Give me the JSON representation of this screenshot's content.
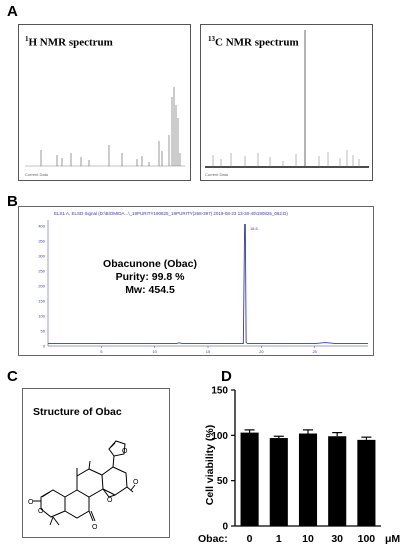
{
  "panels": {
    "a": {
      "label": "A",
      "h_nmr_title": "H NMR spectrum",
      "h_sup": "1",
      "c_nmr_title": "C NMR spectrum",
      "c_sup": "13"
    },
    "b": {
      "label": "B",
      "compound": "Obacunone (Obac)",
      "purity": "Purity: 99.8 %",
      "mw": "Mw: 454.5",
      "trace_title": "ELS1 A, ELSD Signal (D:\\BIOMIDA...\\_19PURITY190825_19PURITY(268-397) 2019-08-23 13-30-49\\190825_062.D)"
    },
    "c": {
      "label": "C",
      "title": "Structure of Obac"
    },
    "d": {
      "label": "D"
    }
  },
  "chart_data": [
    {
      "type": "bar",
      "title": "",
      "xlabel": "Obac:",
      "x_unit": "μM",
      "ylabel": "Cell viability (%)",
      "ylim": [
        0,
        150
      ],
      "yticks": [
        "0",
        "50",
        "100",
        "150"
      ],
      "categories": [
        "0",
        "1",
        "10",
        "30",
        "100"
      ],
      "values": [
        103,
        97,
        102,
        99,
        95
      ],
      "errors": [
        3,
        2,
        4,
        4,
        3
      ],
      "bar_color": "#000000"
    },
    {
      "type": "line",
      "title": "",
      "xticks": [
        "5",
        "10",
        "15",
        "20",
        "25"
      ],
      "xlim": [
        0,
        30
      ],
      "yticks": [
        "400",
        "350",
        "300",
        "250",
        "200",
        "150",
        "100",
        "50",
        "0"
      ],
      "ylim": [
        0,
        420
      ],
      "peak_x": 18.5,
      "peak_height": 405,
      "line_color": "#3a3ab0"
    }
  ]
}
